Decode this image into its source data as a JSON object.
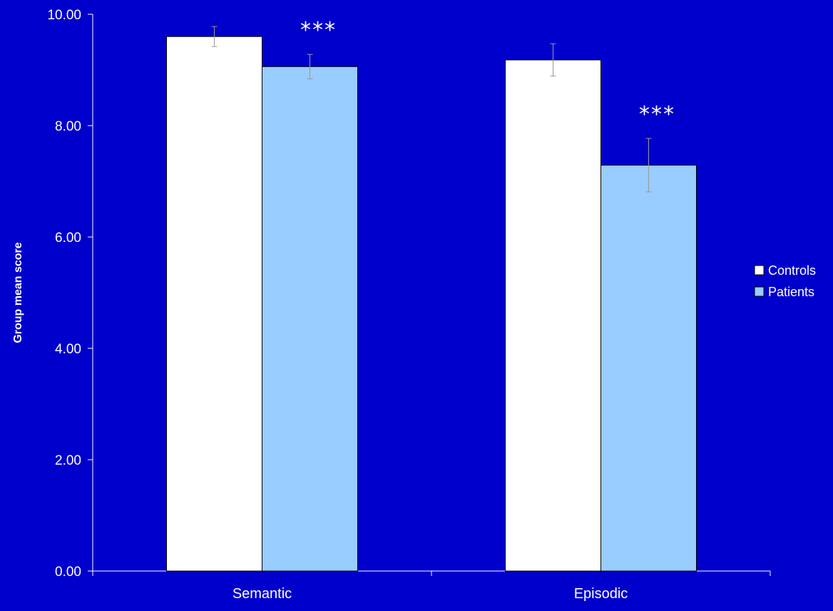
{
  "chart_data": {
    "type": "bar",
    "title": "",
    "xlabel": "",
    "ylabel": "Group mean score",
    "categories": [
      "Semantic",
      "Episodic"
    ],
    "series": [
      {
        "name": "Controls",
        "values": [
          9.6,
          9.18
        ],
        "error": [
          0.18,
          0.29
        ],
        "color": "#FFFFFF"
      },
      {
        "name": "Patients",
        "values": [
          9.06,
          7.29
        ],
        "error": [
          0.22,
          0.48
        ],
        "color": "#99CCFF"
      }
    ],
    "ylim": [
      0,
      10
    ],
    "yticks": [
      "0.00",
      "2.00",
      "4.00",
      "6.00",
      "8.00",
      "10.00"
    ],
    "annotations": [
      {
        "category": "Semantic",
        "text": "***"
      },
      {
        "category": "Episodic",
        "text": "***"
      }
    ],
    "grid": false,
    "legend_position": "right"
  },
  "colors": {
    "background": "#0000CC",
    "axis": "#FFFFFF",
    "error_bar": "#999999",
    "bar_stroke": "#000000"
  }
}
